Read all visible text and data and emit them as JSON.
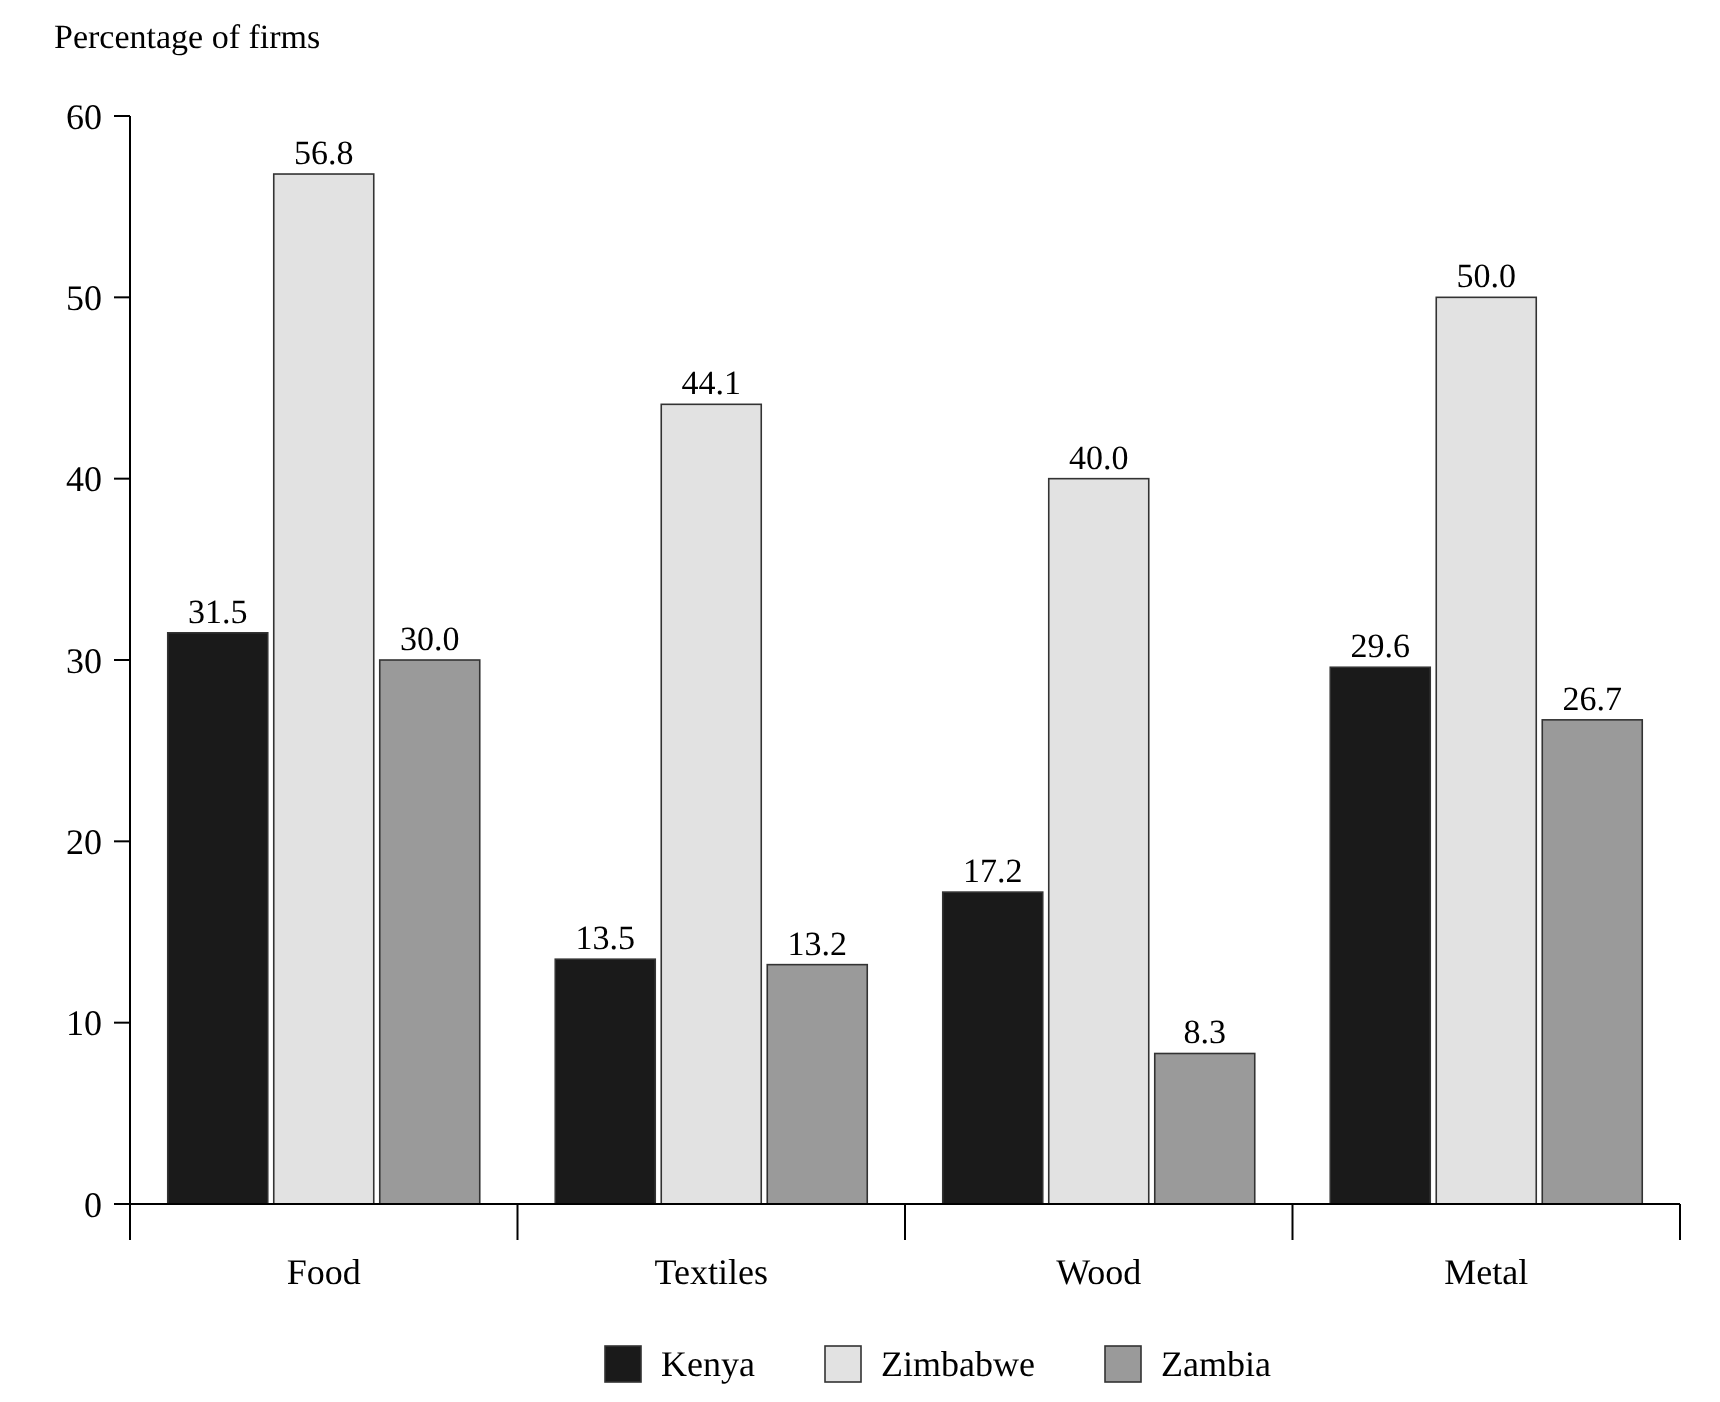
{
  "chart_data": {
    "type": "bar",
    "ylabel": "Percentage of firms",
    "categories": [
      "Food",
      "Textiles",
      "Wood",
      "Metal"
    ],
    "series": [
      {
        "name": "Kenya",
        "color": "#1a1a1a",
        "values": [
          31.5,
          13.5,
          17.2,
          29.6
        ],
        "value_labels": [
          "31.5",
          "13.5",
          "17.2",
          "29.6"
        ]
      },
      {
        "name": "Zimbabwe",
        "color": "#e2e2e2",
        "values": [
          56.8,
          44.1,
          40.0,
          50.0
        ],
        "value_labels": [
          "56.8",
          "44.1",
          "40.0",
          "50.0"
        ]
      },
      {
        "name": "Zambia",
        "color": "#9a9a9a",
        "values": [
          30.0,
          13.2,
          8.3,
          26.7
        ],
        "value_labels": [
          "30.0",
          "13.2",
          "8.3",
          "26.7"
        ]
      }
    ],
    "ylim": [
      0,
      60
    ],
    "yticks": [
      0,
      10,
      20,
      30,
      40,
      50,
      60
    ],
    "grid": false,
    "legend": "bottom"
  }
}
